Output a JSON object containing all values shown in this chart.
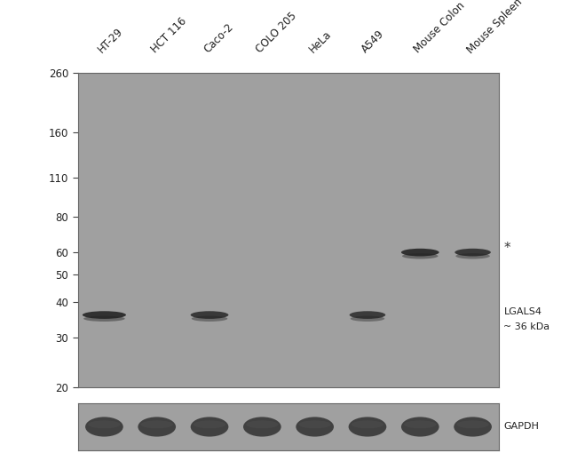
{
  "gel_bg": "#a0a0a0",
  "white_bg": "#ffffff",
  "lane_labels": [
    "HT-29",
    "HCT 116",
    "Caco-2",
    "COLO 205",
    "HeLa",
    "A549",
    "Mouse Colon",
    "Mouse Spleen"
  ],
  "mw_markers": [
    260,
    160,
    110,
    80,
    60,
    50,
    40,
    30,
    20
  ],
  "band_color": "#222222",
  "gapdh_band_color": "#2a2a2a",
  "n_lanes": 8,
  "lgals4_kda": 36,
  "nonspec_kda": 60,
  "lgals4_lanes": [
    0,
    2,
    5
  ],
  "nonspec_lanes": [
    6,
    7
  ]
}
